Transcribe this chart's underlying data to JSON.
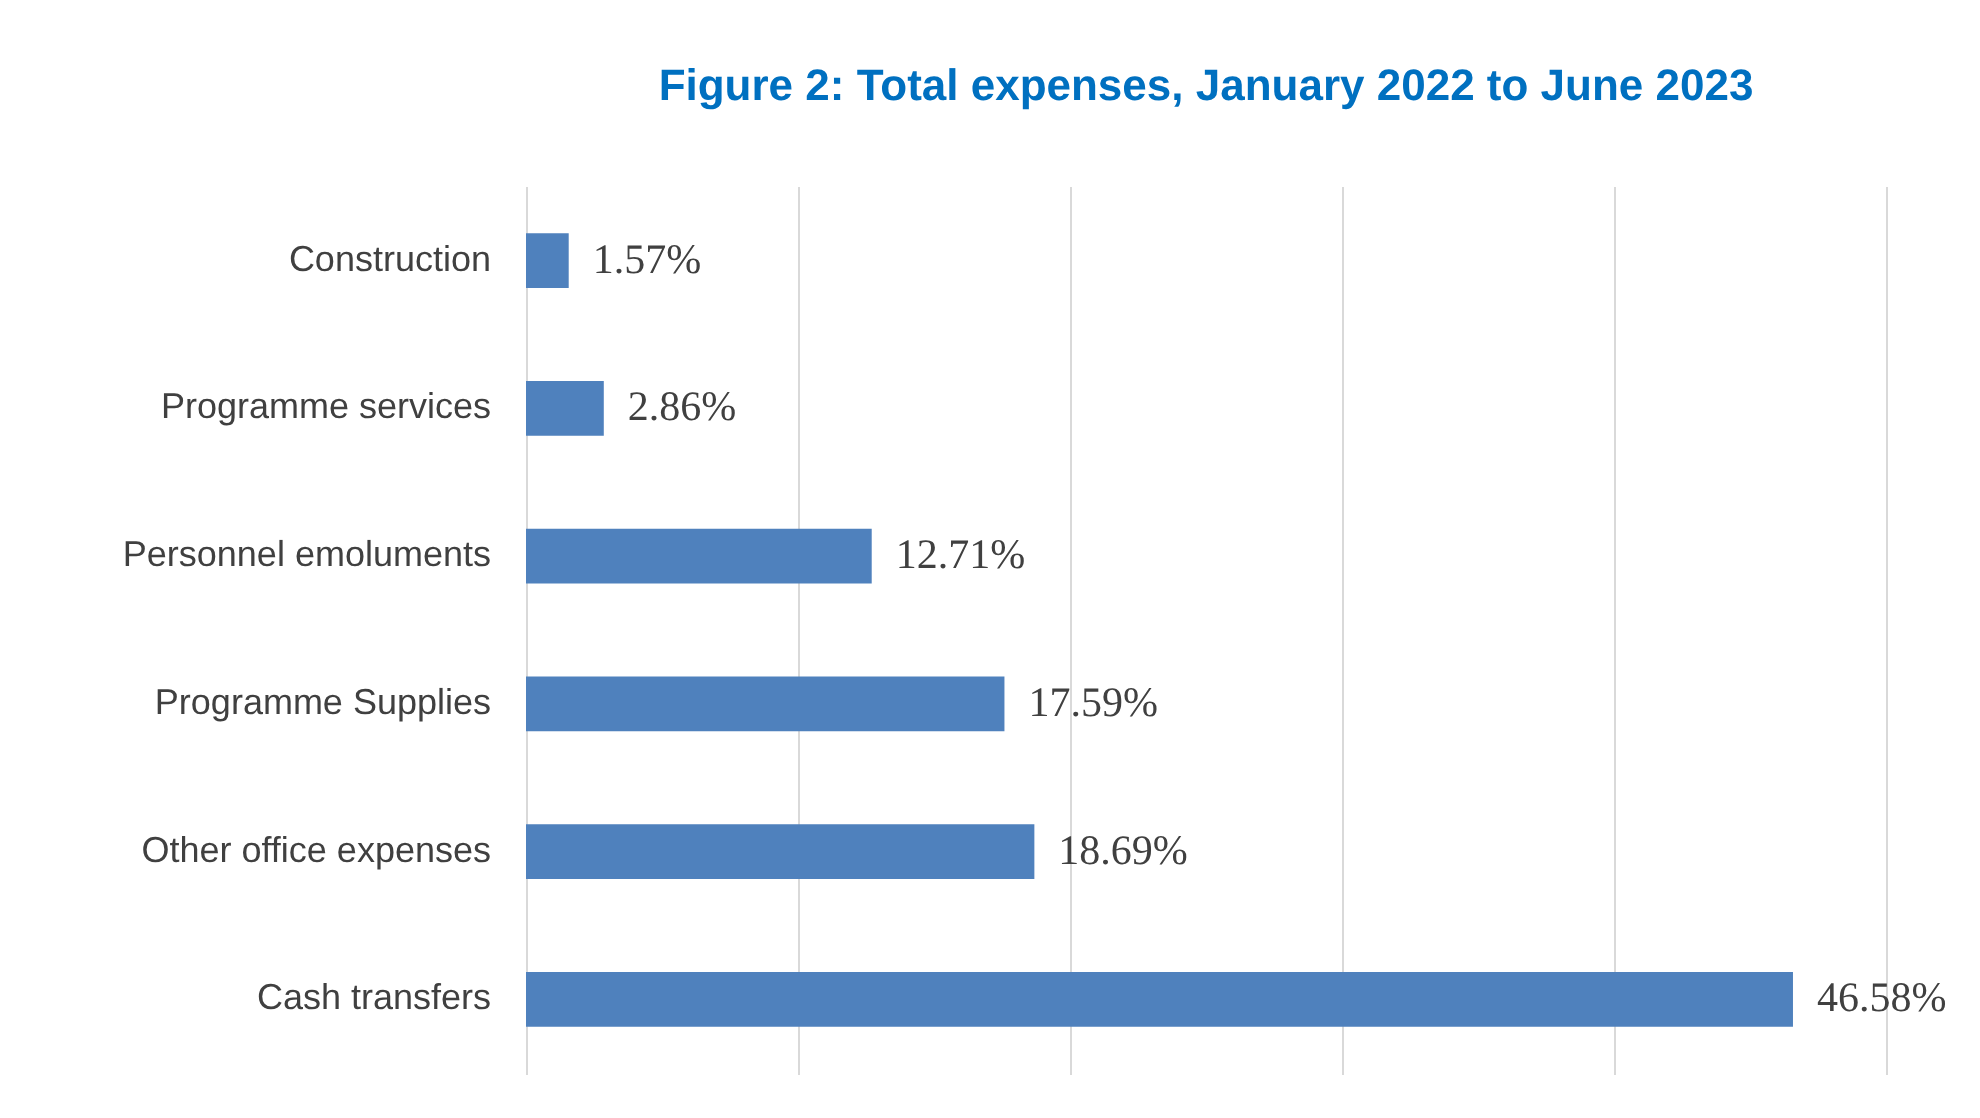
{
  "chart_data": {
    "type": "bar",
    "orientation": "horizontal",
    "title": "Figure 2: Total expenses, January 2022 to June 2023",
    "categories": [
      "Construction",
      "Programme services",
      "Personnel emoluments",
      "Programme Supplies",
      "Other office expenses",
      "Cash transfers"
    ],
    "values": [
      1.57,
      2.86,
      12.71,
      17.59,
      18.69,
      46.58
    ],
    "value_labels": [
      "1.57%",
      "2.86%",
      "12.71%",
      "17.59%",
      "18.69%",
      "46.58%"
    ],
    "color": "#4f81bd",
    "xlim": [
      0,
      50
    ],
    "xticks": [
      {
        "value": 0,
        "label": null
      },
      {
        "value": 10,
        "label": null
      },
      {
        "value": 20,
        "label": null
      },
      {
        "value": 30,
        "label": null
      },
      {
        "value": 40,
        "label": null
      },
      {
        "value": 50,
        "label": null
      }
    ],
    "grid": "x",
    "tick_labels": "y"
  }
}
